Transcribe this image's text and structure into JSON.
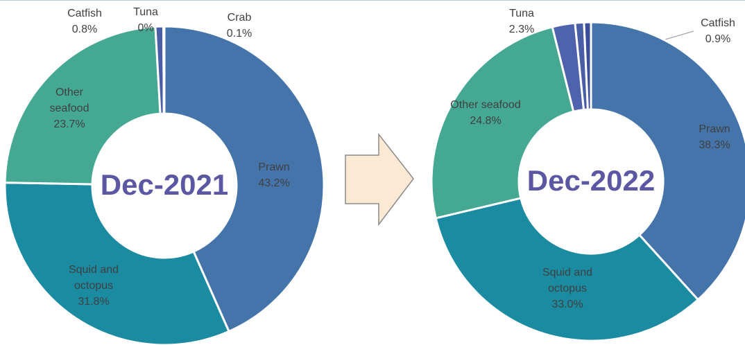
{
  "chart_data": [
    {
      "type": "donut",
      "title": "Dec-2021",
      "categories": [
        "Prawn",
        "Squid and octopus",
        "Other seafood",
        "Catfish",
        "Tuna",
        "Crab"
      ],
      "values": [
        43.2,
        31.8,
        23.7,
        0.8,
        0,
        0.1
      ],
      "value_labels": [
        "43.2%",
        "31.8%",
        "23.7%",
        "0.8%",
        "0%",
        "0.1%"
      ],
      "colors": [
        "#4474a9",
        "#1a8ba0",
        "#45a893",
        "#4a5ea8",
        "#5b6eb5",
        "#3a4e9c"
      ]
    },
    {
      "type": "donut",
      "title": "Dec-2022",
      "categories": [
        "Prawn",
        "Squid and octopus",
        "Other seafood",
        "Tuna",
        "Catfish",
        null
      ],
      "values": [
        38.3,
        33.0,
        24.8,
        2.3,
        0.9,
        0.7
      ],
      "value_labels": [
        "38.3%",
        "33.0%",
        "24.8%",
        "2.3%",
        "0.9%",
        null
      ],
      "colors": [
        "#4474a9",
        "#1a8ba0",
        "#45a893",
        "#4f62ad",
        "#4a5ea8",
        "#3a4e9c"
      ]
    }
  ]
}
